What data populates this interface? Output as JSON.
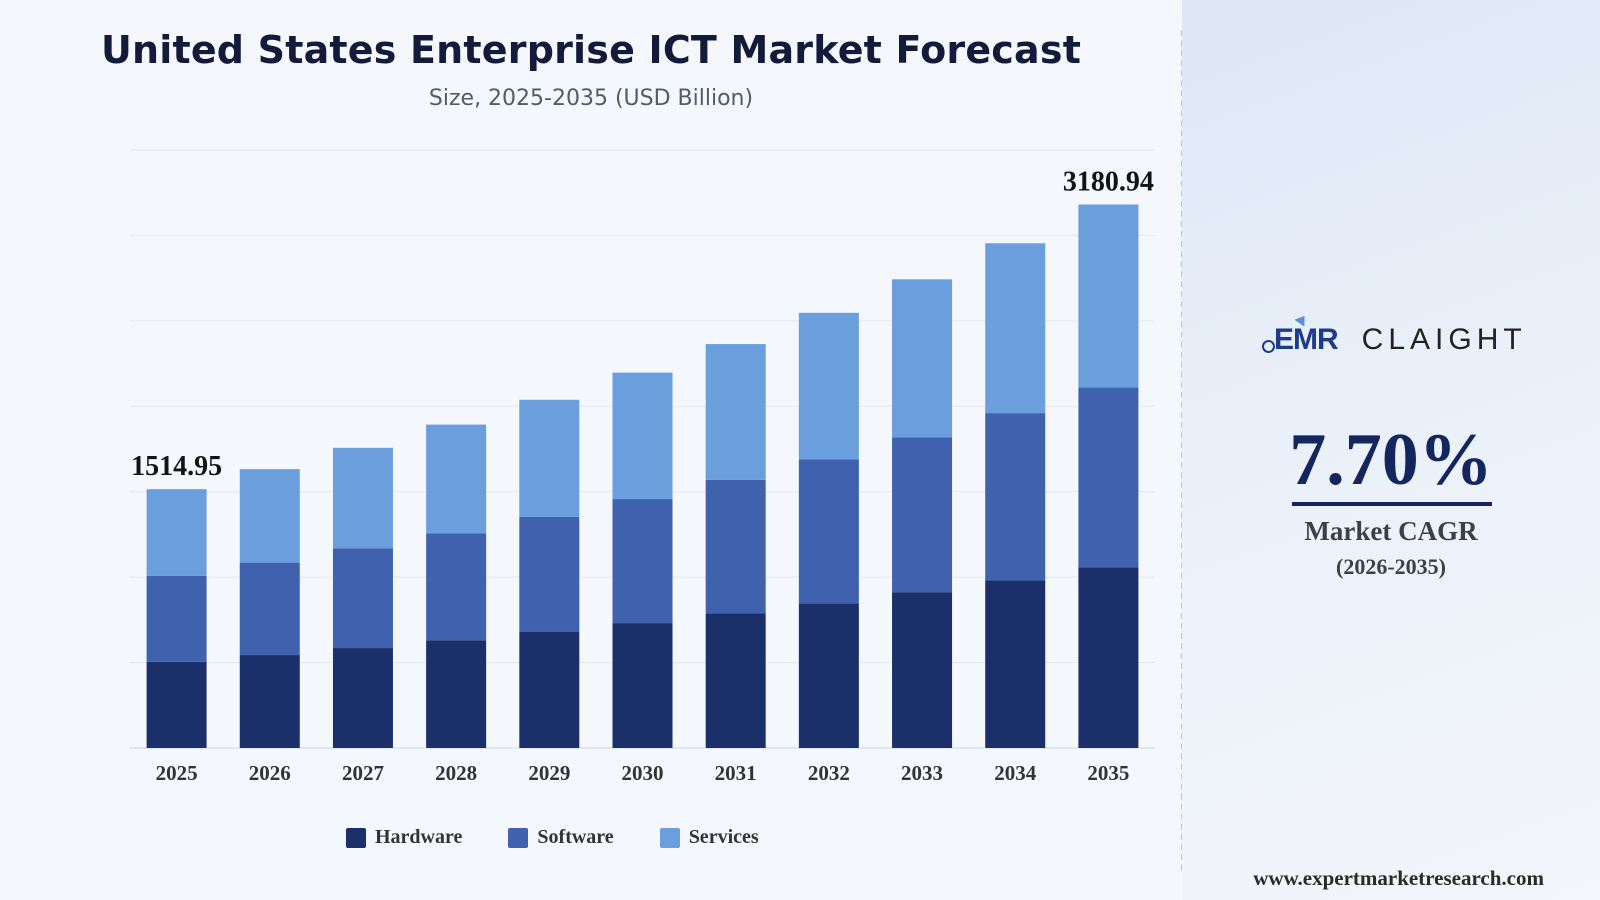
{
  "header": {
    "title": "United States Enterprise ICT Market Forecast",
    "subtitle": "Size, 2025-2035 (USD Billion)"
  },
  "chart_data": {
    "type": "bar",
    "stacked": true,
    "categories": [
      "2025",
      "2026",
      "2027",
      "2028",
      "2029",
      "2030",
      "2031",
      "2032",
      "2033",
      "2034",
      "2035"
    ],
    "series": [
      {
        "name": "Hardware",
        "color": "#1b2f6b",
        "values": [
          505,
          544,
          585,
          630,
          679,
          731,
          787,
          847,
          912,
          982,
          1058
        ]
      },
      {
        "name": "Software",
        "color": "#4062ae",
        "values": [
          502,
          541,
          584,
          626,
          674,
          726,
          782,
          842,
          907,
          978,
          1053
        ]
      },
      {
        "name": "Services",
        "color": "#6a9edd",
        "values": [
          508,
          547,
          588,
          637,
          685,
          740,
          795,
          858,
          924,
          994,
          1070
        ]
      }
    ],
    "totals_shown": {
      "first": {
        "category": "2025",
        "label": "1514.95"
      },
      "last": {
        "category": "2035",
        "label": "3180.94"
      }
    },
    "ylim": [
      0,
      3500
    ],
    "grid": true,
    "legend": "bottom"
  },
  "sidebar": {
    "logo_left": "EMR",
    "logo_right": "CLAIGHT",
    "cagr_value": "7.70%",
    "cagr_label": "Market CAGR",
    "cagr_period": "(2026-2035)",
    "website": "www.expertmarketresearch.com"
  }
}
